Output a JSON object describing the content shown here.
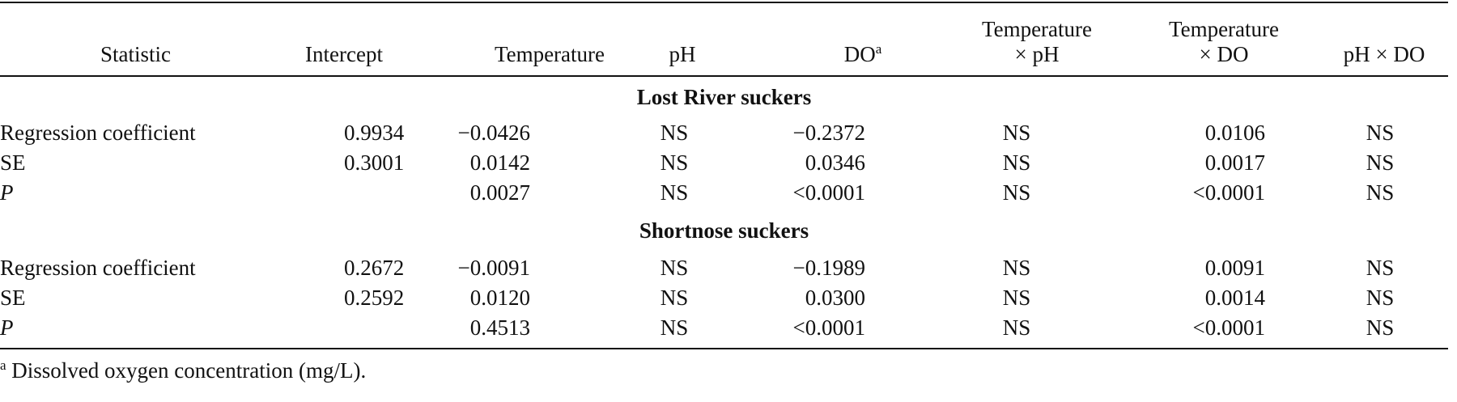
{
  "headers": {
    "statistic": "Statistic",
    "intercept": "Intercept",
    "temperature": "Temperature",
    "ph": "pH",
    "do": "DO",
    "do_sup": "a",
    "temp_ph_line1": "Temperature",
    "temp_ph_line2": "× pH",
    "temp_do_line1": "Temperature",
    "temp_do_line2": "× DO",
    "ph_do": "pH × DO"
  },
  "sections": [
    {
      "title": "Lost River suckers",
      "rows": [
        {
          "label": "Regression coefficient",
          "intercept": "0.9934",
          "temperature": "−0.0426",
          "ph": "NS",
          "do": "−0.2372",
          "temp_ph": "NS",
          "temp_do": "0.0106",
          "ph_do": "NS"
        },
        {
          "label": "SE",
          "intercept": "0.3001",
          "temperature": "0.0142",
          "ph": "NS",
          "do": "0.0346",
          "temp_ph": "NS",
          "temp_do": "0.0017",
          "ph_do": "NS"
        },
        {
          "label": "P",
          "intercept": "",
          "temperature": "0.0027",
          "ph": "NS",
          "do": "<0.0001",
          "temp_ph": "NS",
          "temp_do": "<0.0001",
          "ph_do": "NS"
        }
      ]
    },
    {
      "title": "Shortnose suckers",
      "rows": [
        {
          "label": "Regression coefficient",
          "intercept": "0.2672",
          "temperature": "−0.0091",
          "ph": "NS",
          "do": "−0.1989",
          "temp_ph": "NS",
          "temp_do": "0.0091",
          "ph_do": "NS"
        },
        {
          "label": "SE",
          "intercept": "0.2592",
          "temperature": "0.0120",
          "ph": "NS",
          "do": "0.0300",
          "temp_ph": "NS",
          "temp_do": "0.0014",
          "ph_do": "NS"
        },
        {
          "label": "P",
          "intercept": "",
          "temperature": "0.4513",
          "ph": "NS",
          "do": "<0.0001",
          "temp_ph": "NS",
          "temp_do": "<0.0001",
          "ph_do": "NS"
        }
      ]
    }
  ],
  "footnote": {
    "marker": "a",
    "text": " Dissolved oxygen concentration (mg/L)."
  }
}
